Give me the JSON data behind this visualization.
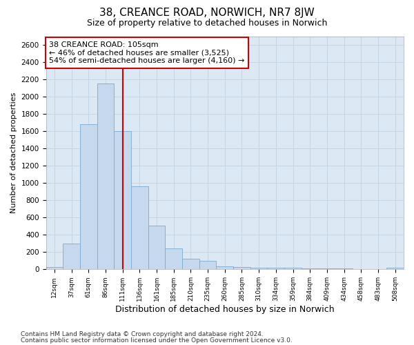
{
  "title_line1": "38, CREANCE ROAD, NORWICH, NR7 8JW",
  "title_line2": "Size of property relative to detached houses in Norwich",
  "xlabel": "Distribution of detached houses by size in Norwich",
  "ylabel": "Number of detached properties",
  "footer_line1": "Contains HM Land Registry data © Crown copyright and database right 2024.",
  "footer_line2": "Contains public sector information licensed under the Open Government Licence v3.0.",
  "bin_labels": [
    "12sqm",
    "37sqm",
    "61sqm",
    "86sqm",
    "111sqm",
    "136sqm",
    "161sqm",
    "185sqm",
    "210sqm",
    "235sqm",
    "260sqm",
    "285sqm",
    "310sqm",
    "334sqm",
    "359sqm",
    "384sqm",
    "409sqm",
    "434sqm",
    "458sqm",
    "483sqm",
    "508sqm"
  ],
  "bar_heights": [
    25,
    300,
    1680,
    2150,
    1600,
    960,
    510,
    245,
    125,
    100,
    35,
    30,
    20,
    18,
    15,
    12,
    10,
    8,
    5,
    3,
    20
  ],
  "bar_color": "#c5d8ee",
  "bar_edge_color": "#7aaad0",
  "vline_color": "#cc0000",
  "vline_x": 4.0,
  "annotation_text": "38 CREANCE ROAD: 105sqm\n← 46% of detached houses are smaller (3,525)\n54% of semi-detached houses are larger (4,160) →",
  "annotation_box_edge_color": "#cc0000",
  "ylim_max": 2700,
  "ytick_step": 200,
  "grid_color": "#c5d5e5",
  "bg_color": "#dce8f4",
  "title1_fontsize": 11,
  "title2_fontsize": 9,
  "xlabel_fontsize": 9,
  "ylabel_fontsize": 8,
  "annot_fontsize": 8,
  "footer_fontsize": 6.5
}
